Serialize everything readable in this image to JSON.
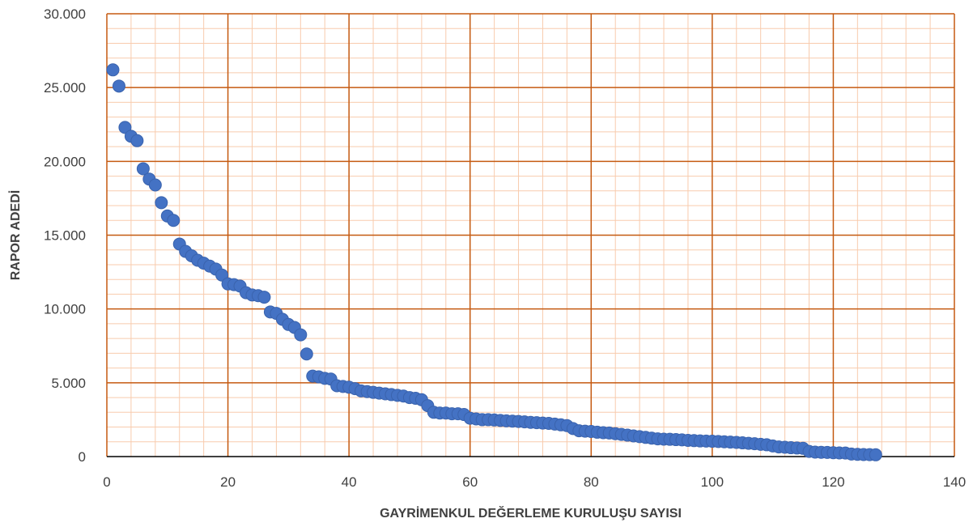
{
  "chart_data": {
    "type": "scatter",
    "title": "",
    "xlabel": "GAYRİMENKUL DEĞERLEME KURULUŞU SAYISI",
    "ylabel": "RAPOR ADEDİ",
    "xlim": [
      0,
      140
    ],
    "ylim": [
      0,
      30000
    ],
    "xticks": [
      "0",
      "20",
      "40",
      "60",
      "80",
      "100",
      "120",
      "140"
    ],
    "yticks": [
      "0",
      "5.000",
      "10.000",
      "15.000",
      "20.000",
      "25.000",
      "30.000"
    ],
    "grid": true,
    "legend": "none",
    "colors": {
      "marker": "#4472C4",
      "marker_edge": "#3A63AD",
      "major_grid": "#C55A11",
      "minor_grid": "#F8CBAD",
      "axis": "#000000",
      "text": "#404040"
    },
    "series": [
      {
        "x": [
          1,
          2,
          3,
          4,
          5,
          6,
          7,
          8,
          9,
          10,
          11,
          12,
          13,
          14,
          15,
          16,
          17,
          18,
          19,
          20,
          21,
          22,
          23,
          24,
          25,
          26,
          27,
          28,
          29,
          30,
          31,
          32,
          33,
          34,
          35,
          36,
          37,
          38,
          39,
          40,
          41,
          42,
          43,
          44,
          45,
          46,
          47,
          48,
          49,
          50,
          51,
          52,
          53,
          54,
          55,
          56,
          57,
          58,
          59,
          60,
          61,
          62,
          63,
          64,
          65,
          66,
          67,
          68,
          69,
          70,
          71,
          72,
          73,
          74,
          75,
          76,
          77,
          78,
          79,
          80,
          81,
          82,
          83,
          84,
          85,
          86,
          87,
          88,
          89,
          90,
          91,
          92,
          93,
          94,
          95,
          96,
          97,
          98,
          99,
          100,
          101,
          102,
          103,
          104,
          105,
          106,
          107,
          108,
          109,
          110,
          111,
          112,
          113,
          114,
          115,
          116,
          117,
          118,
          119,
          120,
          121,
          122,
          123,
          124,
          125,
          126,
          127
        ],
        "y": [
          26200,
          25100,
          22300,
          21700,
          21400,
          19500,
          18800,
          18400,
          17200,
          16300,
          16000,
          14400,
          13900,
          13600,
          13300,
          13100,
          12900,
          12700,
          12300,
          11700,
          11650,
          11550,
          11100,
          10950,
          10900,
          10800,
          9800,
          9700,
          9300,
          8950,
          8750,
          8250,
          6950,
          5450,
          5400,
          5300,
          5250,
          4800,
          4750,
          4700,
          4600,
          4450,
          4400,
          4350,
          4300,
          4250,
          4200,
          4150,
          4100,
          4000,
          3950,
          3850,
          3450,
          3000,
          2950,
          2950,
          2900,
          2900,
          2850,
          2600,
          2550,
          2500,
          2500,
          2480,
          2450,
          2420,
          2400,
          2380,
          2350,
          2320,
          2300,
          2270,
          2250,
          2200,
          2150,
          2100,
          1900,
          1750,
          1720,
          1700,
          1650,
          1620,
          1600,
          1550,
          1500,
          1450,
          1400,
          1350,
          1300,
          1250,
          1200,
          1180,
          1170,
          1150,
          1130,
          1100,
          1080,
          1060,
          1050,
          1040,
          1020,
          1000,
          980,
          960,
          930,
          900,
          870,
          830,
          800,
          720,
          650,
          630,
          600,
          580,
          560,
          350,
          300,
          290,
          280,
          260,
          250,
          240,
          170,
          150,
          140,
          130,
          120
        ]
      }
    ]
  }
}
